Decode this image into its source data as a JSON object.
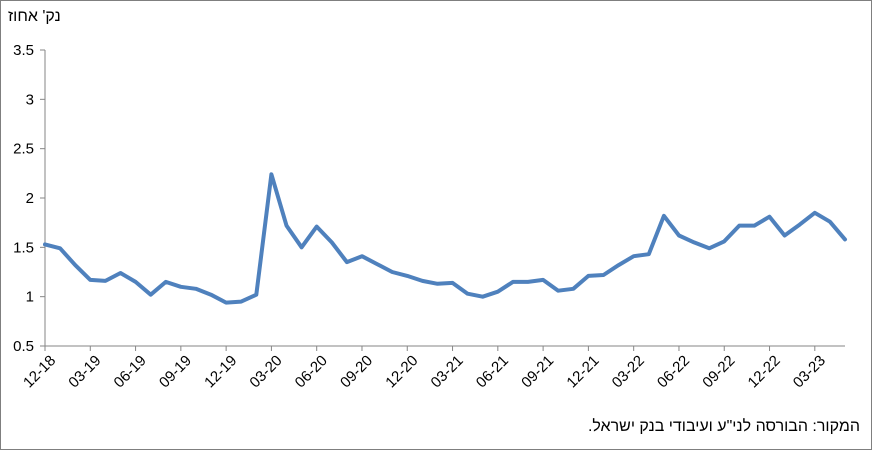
{
  "chart_data": {
    "type": "line",
    "ylabel": "נק' אחוז",
    "source": "המקור: הבורסה לני\"ע ועיבודי בנק ישראל.",
    "ylim": [
      0.5,
      3.5
    ],
    "yticks": [
      "0.5",
      "1",
      "1.5",
      "2",
      "2.5",
      "3",
      "3.5"
    ],
    "xtick_labels": [
      "12-18",
      "03-19",
      "06-19",
      "09-19",
      "12-19",
      "03-20",
      "06-20",
      "09-20",
      "12-20",
      "03-21",
      "06-21",
      "09-21",
      "12-21",
      "03-22",
      "06-22",
      "09-22",
      "12-22",
      "03-23"
    ],
    "series_color": "#4F81BD",
    "series": [
      {
        "values": [
          1.53,
          1.49,
          1.32,
          1.17,
          1.16,
          1.24,
          1.15,
          1.02,
          1.15,
          1.1,
          1.08,
          1.02,
          0.94,
          0.95,
          1.02,
          2.24,
          1.72,
          1.5,
          1.71,
          1.55,
          1.35,
          1.41,
          1.33,
          1.25,
          1.21,
          1.16,
          1.13,
          1.14,
          1.03,
          1.0,
          1.05,
          1.15,
          1.15,
          1.17,
          1.06,
          1.08,
          1.21,
          1.22,
          1.32,
          1.41,
          1.43,
          1.82,
          1.62,
          1.55,
          1.49,
          1.56,
          1.72,
          1.72,
          1.81,
          1.62,
          1.73,
          1.85,
          1.76,
          1.58
        ]
      }
    ]
  }
}
